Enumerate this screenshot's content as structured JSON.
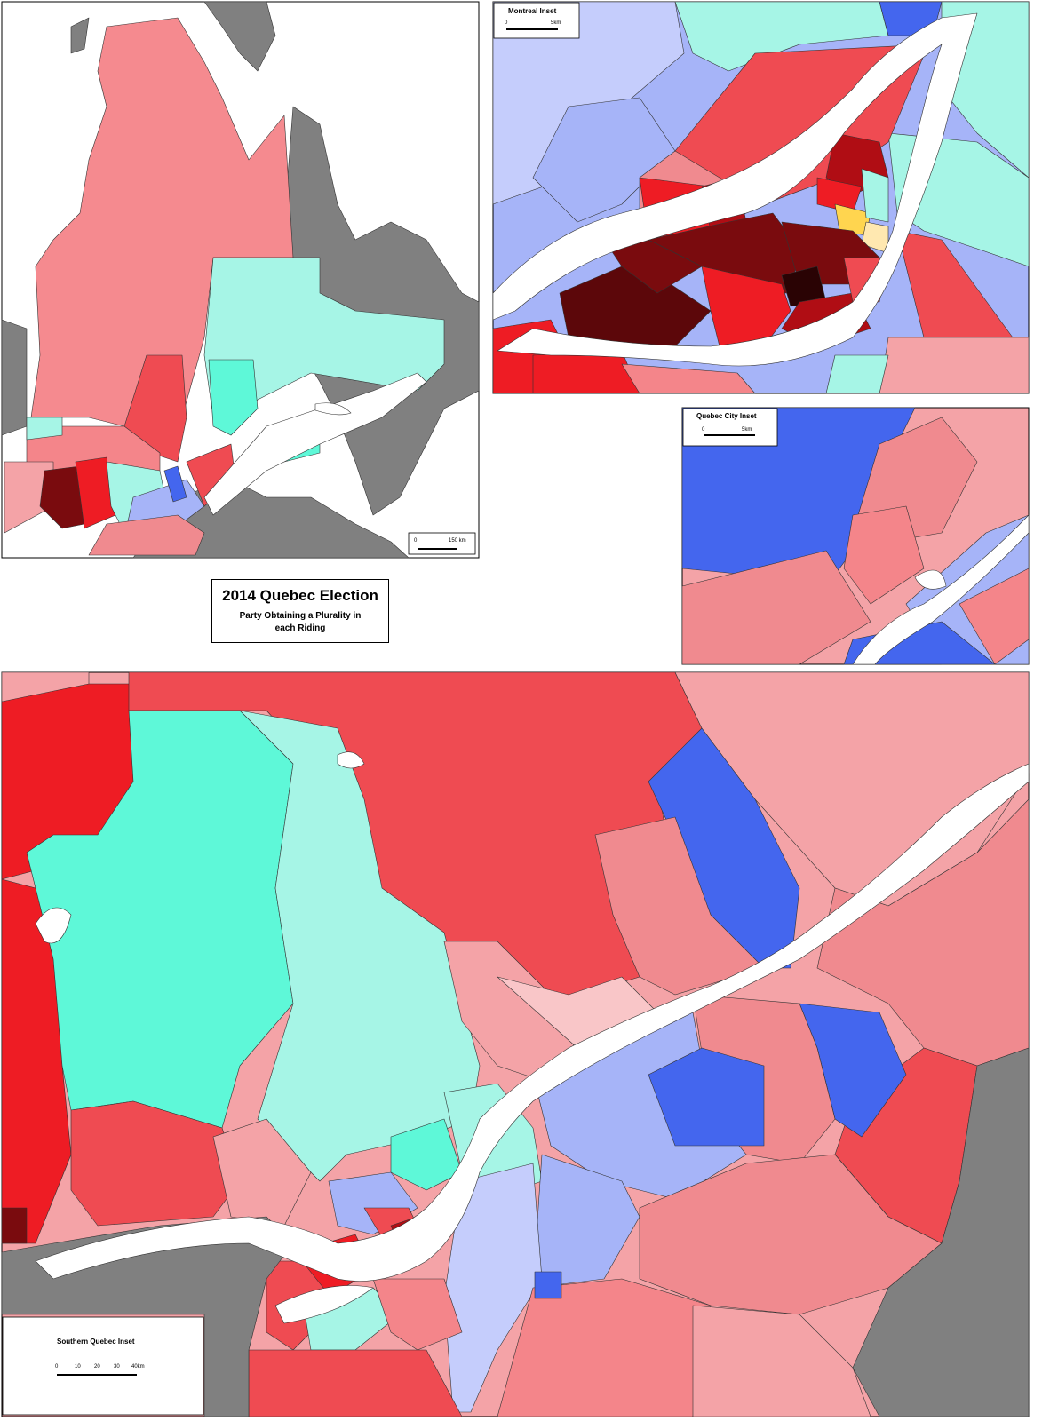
{
  "title": "2014 Quebec Election",
  "subtitle": "Party Obtaining a Plurality in each Riding",
  "main_map": {
    "scale": [
      "0",
      "150 km"
    ]
  },
  "insets": [
    {
      "label": "Montreal Inset",
      "scale": [
        "0",
        "5km"
      ]
    },
    {
      "label": "Quebec City Inset",
      "scale": [
        "0",
        "5km"
      ]
    },
    {
      "label": "Southern Quebec Inset",
      "scale": [
        "0",
        "10",
        "20",
        "30",
        "40km"
      ]
    }
  ]
}
